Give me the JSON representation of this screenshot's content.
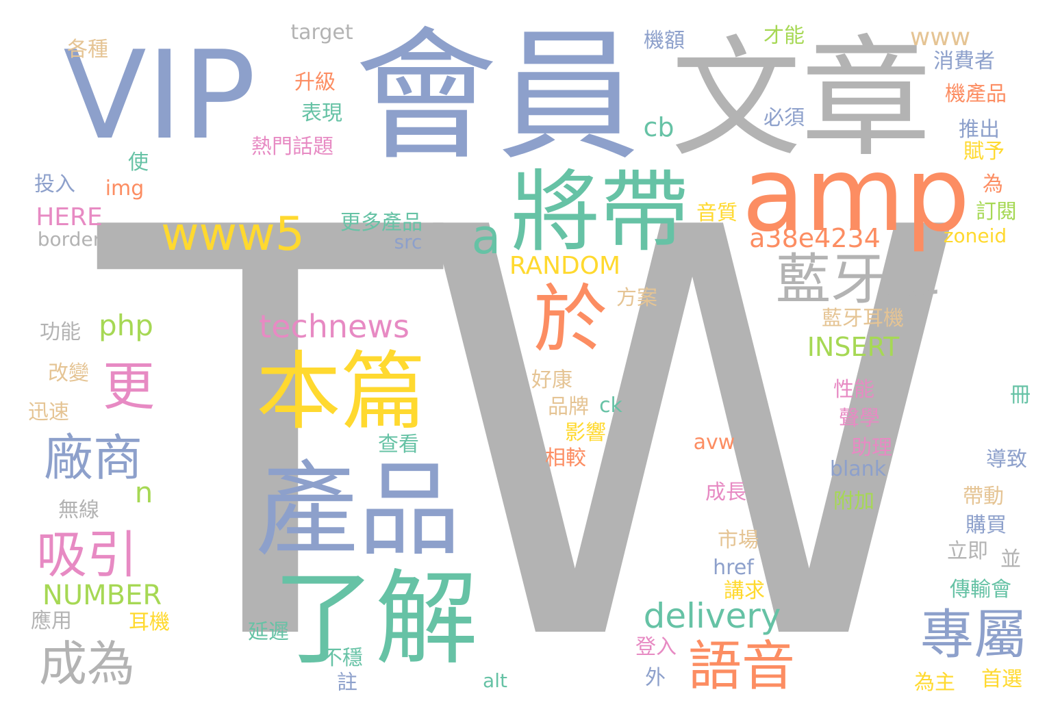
{
  "colors": {
    "gray": "#b3b3b3",
    "blue": "#8da0cb",
    "orange": "#fc8d62",
    "green": "#66c2a5",
    "yellow": "#ffd92f",
    "pink": "#e78ac3",
    "lime": "#a6d854",
    "tan": "#e5c494"
  },
  "words": [
    {
      "text": "TW",
      "color": "gray"
    },
    {
      "text": "會員",
      "color": "blue"
    },
    {
      "text": "文章",
      "color": "gray"
    },
    {
      "text": "VIP",
      "color": "blue"
    },
    {
      "text": "amp",
      "color": "orange"
    },
    {
      "text": "將帶",
      "color": "green"
    },
    {
      "text": "產品",
      "color": "blue"
    },
    {
      "text": "了解",
      "color": "green"
    },
    {
      "text": "本篇",
      "color": "yellow"
    },
    {
      "text": "於",
      "color": "orange"
    },
    {
      "text": "www5",
      "color": "yellow"
    },
    {
      "text": "藍牙耳",
      "color": "gray"
    },
    {
      "text": "專屬",
      "color": "blue"
    },
    {
      "text": "語音",
      "color": "orange"
    },
    {
      "text": "廠商",
      "color": "blue"
    },
    {
      "text": "吸引",
      "color": "pink"
    },
    {
      "text": "成為",
      "color": "gray"
    },
    {
      "text": "更",
      "color": "pink"
    },
    {
      "text": "a",
      "color": "green"
    },
    {
      "text": "delivery",
      "color": "green"
    },
    {
      "text": "technews",
      "color": "pink"
    },
    {
      "text": "a38e4234",
      "color": "orange"
    },
    {
      "text": "INSERT",
      "color": "lime"
    },
    {
      "text": "RANDOM",
      "color": "yellow"
    },
    {
      "text": "NUMBER",
      "color": "lime"
    },
    {
      "text": "php",
      "color": "lime"
    },
    {
      "text": "www",
      "color": "tan"
    },
    {
      "text": "cb",
      "color": "green"
    },
    {
      "text": "n",
      "color": "lime"
    },
    {
      "text": "HERE",
      "color": "pink"
    },
    {
      "text": "target",
      "color": "gray"
    },
    {
      "text": "border",
      "color": "gray"
    },
    {
      "text": "img",
      "color": "orange"
    },
    {
      "text": "src",
      "color": "blue"
    },
    {
      "text": "zoneid",
      "color": "yellow"
    },
    {
      "text": "avw",
      "color": "orange"
    },
    {
      "text": "blank",
      "color": "blue"
    },
    {
      "text": "href",
      "color": "blue"
    },
    {
      "text": "ck",
      "color": "green"
    },
    {
      "text": "alt",
      "color": "green"
    },
    {
      "text": "各種",
      "color": "tan"
    },
    {
      "text": "升級",
      "color": "orange"
    },
    {
      "text": "表現",
      "color": "green"
    },
    {
      "text": "熱門話題",
      "color": "pink"
    },
    {
      "text": "使",
      "color": "green"
    },
    {
      "text": "投入",
      "color": "blue"
    },
    {
      "text": "機額",
      "color": "blue"
    },
    {
      "text": "才能",
      "color": "lime"
    },
    {
      "text": "必須",
      "color": "blue"
    },
    {
      "text": "消費者",
      "color": "blue"
    },
    {
      "text": "機產品",
      "color": "orange"
    },
    {
      "text": "推出",
      "color": "blue"
    },
    {
      "text": "賦予",
      "color": "yellow"
    },
    {
      "text": "為",
      "color": "orange"
    },
    {
      "text": "訂閱",
      "color": "lime"
    },
    {
      "text": "音質",
      "color": "yellow"
    },
    {
      "text": "更多產品",
      "color": "green"
    },
    {
      "text": "方案",
      "color": "tan"
    },
    {
      "text": "藍牙耳機",
      "color": "tan"
    },
    {
      "text": "功能",
      "color": "gray"
    },
    {
      "text": "改變",
      "color": "tan"
    },
    {
      "text": "迅速",
      "color": "tan"
    },
    {
      "text": "好康",
      "color": "tan"
    },
    {
      "text": "品牌",
      "color": "tan"
    },
    {
      "text": "影響",
      "color": "yellow"
    },
    {
      "text": "查看",
      "color": "green"
    },
    {
      "text": "相較",
      "color": "orange"
    },
    {
      "text": "性能",
      "color": "pink"
    },
    {
      "text": "聲學",
      "color": "pink"
    },
    {
      "text": "助理",
      "color": "pink"
    },
    {
      "text": "冊",
      "color": "green"
    },
    {
      "text": "導致",
      "color": "blue"
    },
    {
      "text": "帶動",
      "color": "tan"
    },
    {
      "text": "購買",
      "color": "blue"
    },
    {
      "text": "立即",
      "color": "gray"
    },
    {
      "text": "並",
      "color": "gray"
    },
    {
      "text": "傳輸會",
      "color": "green"
    },
    {
      "text": "首選",
      "color": "yellow"
    },
    {
      "text": "為主",
      "color": "yellow"
    },
    {
      "text": "無線",
      "color": "gray"
    },
    {
      "text": "應用",
      "color": "gray"
    },
    {
      "text": "耳機",
      "color": "yellow"
    },
    {
      "text": "成長",
      "color": "pink"
    },
    {
      "text": "附加",
      "color": "lime"
    },
    {
      "text": "市場",
      "color": "tan"
    },
    {
      "text": "講求",
      "color": "yellow"
    },
    {
      "text": "延遲",
      "color": "green"
    },
    {
      "text": "不穩",
      "color": "green"
    },
    {
      "text": "註",
      "color": "blue"
    },
    {
      "text": "登入",
      "color": "pink"
    },
    {
      "text": "外",
      "color": "blue"
    }
  ]
}
